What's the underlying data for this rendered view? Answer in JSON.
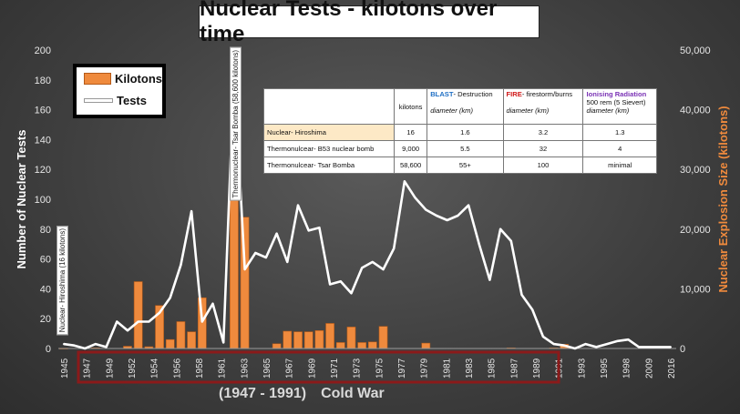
{
  "chart_data": {
    "type": "bar+line",
    "title": "Nuclear Tests - kilotons over time",
    "ylabel_left": "Number of Nuclear Tests",
    "ylabel_right": "Nuclear Explosion Size (kilotons)",
    "ylim_left": [
      0,
      200
    ],
    "ylim_right": [
      0,
      50000
    ],
    "left_ticks": [
      "0",
      "20",
      "40",
      "60",
      "80",
      "100",
      "120",
      "140",
      "160",
      "180",
      "200"
    ],
    "right_ticks": [
      "0",
      "10,000",
      "20,000",
      "30,000",
      "40,000",
      "50,000"
    ],
    "x_tick_labels": [
      "1945",
      "1947",
      "1949",
      "1952",
      "1954",
      "1956",
      "1958",
      "1961",
      "1963",
      "1965",
      "1967",
      "1969",
      "1971",
      "1973",
      "1975",
      "1977",
      "1979",
      "1981",
      "1983",
      "1985",
      "1987",
      "1989",
      "1991",
      "1993",
      "1995",
      "1998",
      "2009",
      "2016"
    ],
    "legend": [
      "Kilotons",
      "Tests"
    ],
    "legend_position": "top-left",
    "categories": [
      "1945",
      "1946",
      "1947",
      "1948",
      "1949",
      "1950",
      "1951",
      "1952",
      "1953",
      "1954",
      "1955",
      "1956",
      "1957",
      "1958",
      "1959",
      "1960",
      "1961",
      "1962",
      "1963",
      "1964",
      "1965",
      "1966",
      "1967",
      "1968",
      "1969",
      "1970",
      "1971",
      "1972",
      "1973",
      "1974",
      "1975",
      "1976",
      "1977",
      "1978",
      "1979",
      "1980",
      "1981",
      "1982",
      "1983",
      "1984",
      "1985",
      "1986",
      "1987",
      "1988",
      "1989",
      "1990",
      "1991",
      "1992",
      "1993",
      "1994",
      "1995",
      "1996",
      "1997",
      "1998",
      "2006",
      "2009",
      "2013",
      "2016"
    ],
    "series": [
      {
        "name": "Kilotons",
        "axis": "right",
        "values": [
          45,
          0,
          0,
          105,
          0,
          0,
          375,
          11200,
          300,
          7200,
          1500,
          4500,
          2800,
          8500,
          0,
          0,
          50000,
          22000,
          0,
          0,
          800,
          2900,
          2800,
          2800,
          3000,
          4200,
          1000,
          3600,
          1000,
          1100,
          3700,
          0,
          0,
          0,
          900,
          0,
          0,
          0,
          0,
          0,
          0,
          0,
          100,
          0,
          0,
          0,
          100,
          700,
          0,
          0,
          0,
          0,
          0,
          0,
          0,
          0,
          0,
          0
        ]
      },
      {
        "name": "Tests",
        "axis": "left",
        "values": [
          3,
          2,
          0,
          3,
          1,
          18,
          12,
          18,
          18,
          24,
          34,
          56,
          92,
          18,
          30,
          4,
          186,
          53,
          64,
          61,
          77,
          58,
          96,
          79,
          81,
          43,
          45,
          37,
          54,
          58,
          53,
          67,
          112,
          101,
          93,
          89,
          86,
          89,
          96,
          70,
          46,
          80,
          72,
          36,
          26,
          8,
          3,
          2,
          0,
          3,
          1,
          3,
          5,
          6,
          1,
          1,
          1,
          1
        ]
      }
    ],
    "annotations": {
      "hiroshima": "Nuclear- Hiroshima (16 kilotons)",
      "tsar": "Thermonuclear- Tsar Bomba (58,600 kilotons)",
      "era_years": "(1947 - 1991)",
      "era_name": "Cold War"
    },
    "table": {
      "col_kilotons": "kilotons",
      "blast_label": "BLAST",
      "blast_rest": "- Destruction",
      "fire_label": "FIRE",
      "fire_rest": "- firestorm/burns",
      "rad_label": "Ionising Radiation",
      "rad_sub": "500 rem (5 Sievert)",
      "unit": "diameter (km)",
      "rows": [
        {
          "name": "Nuclear- Hiroshima",
          "kilotons": "16",
          "blast": "1.6",
          "fire": "3.2",
          "rad": "1.3"
        },
        {
          "name": "Thermonulcear- B53 nuclear bomb",
          "kilotons": "9,000",
          "blast": "5.5",
          "fire": "32",
          "rad": "4"
        },
        {
          "name": "Thermonulcear- Tsar Bomba",
          "kilotons": "58,600",
          "blast": "55+",
          "fire": "100",
          "rad": "minimal"
        }
      ]
    },
    "colors": {
      "bars": "#ef8a3d",
      "bar_edge": "#b55a18",
      "line": "#ffffff",
      "right_axis_label": "#ef8a3d",
      "cold_war_box": "#8b1a1a"
    }
  }
}
